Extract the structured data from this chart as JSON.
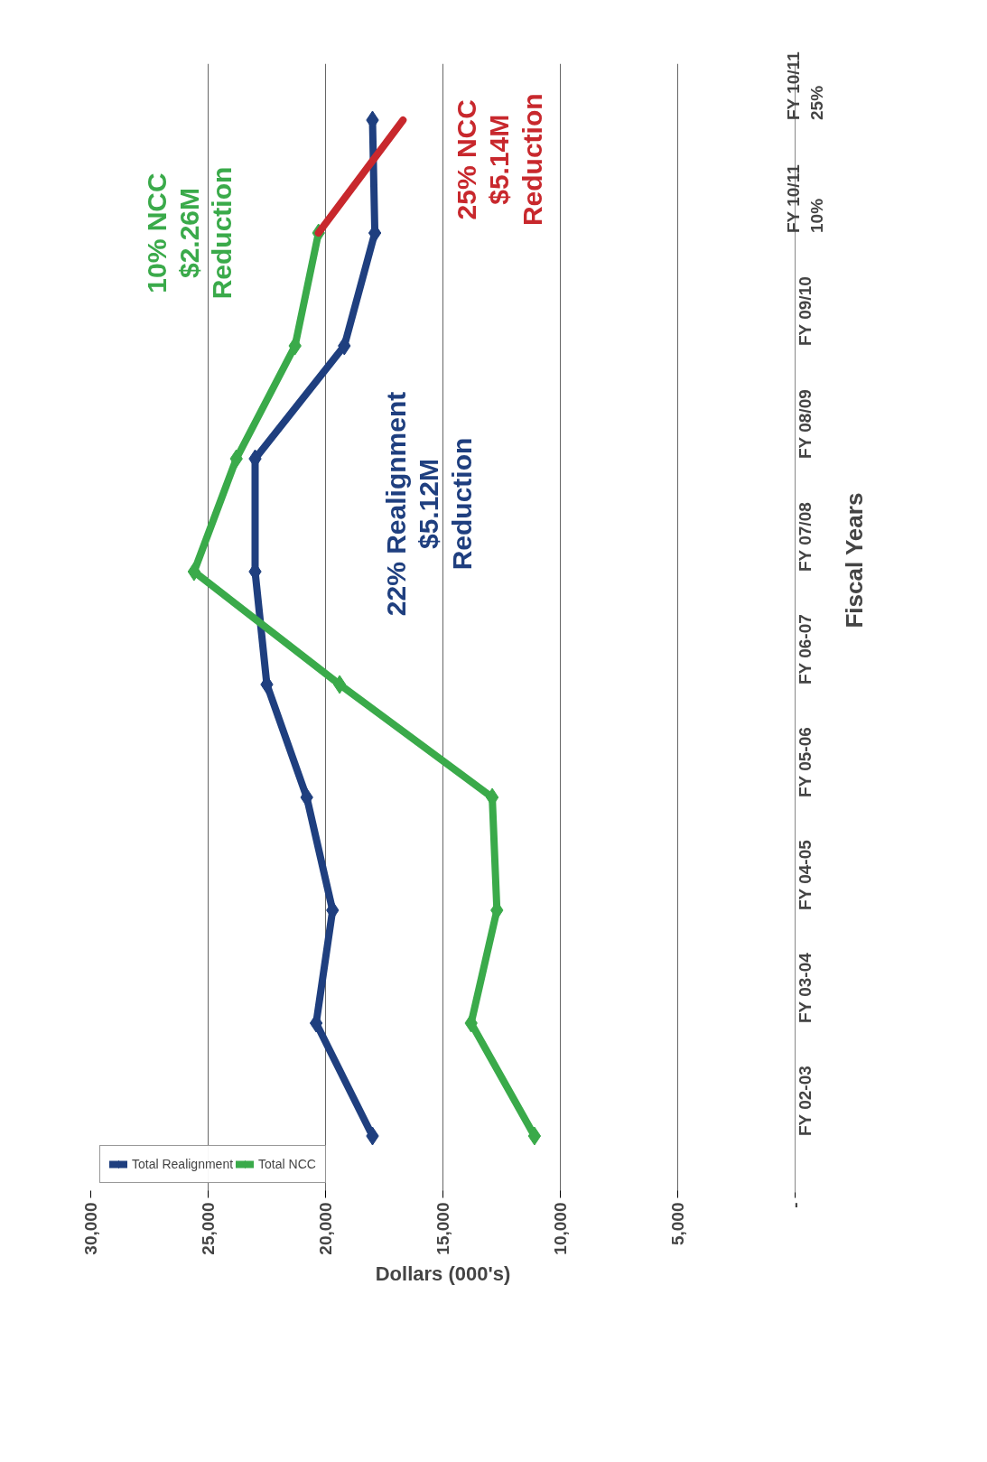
{
  "chart_data": {
    "type": "line",
    "orientation": "horizontal",
    "xlabel": "Dollars (000's)",
    "ylabel": "Fiscal Years",
    "categories": [
      "FY 10/11\n25%",
      "FY 10/11\n10%",
      "FY 09/10",
      "FY 08/09",
      "FY 07/08",
      "FY 06-07",
      "FY 05-06",
      "FY 04-05",
      "FY 03-04",
      "FY 02-03"
    ],
    "series": [
      {
        "name": "Total Realignment",
        "color": "#1f3f7f",
        "values": [
          18000,
          17900,
          19200,
          23000,
          23000,
          22500,
          20800,
          19700,
          20400,
          18000
        ]
      },
      {
        "name": "Total NCC",
        "color": "#3aaa4a",
        "values": [
          null,
          20300,
          21300,
          23800,
          25600,
          19400,
          12900,
          12700,
          13800,
          11100
        ]
      },
      {
        "color": "#c8282d",
        "marker": "none",
        "values": [
          16700,
          20300,
          null,
          null,
          null,
          null,
          null,
          null,
          null,
          null
        ]
      }
    ],
    "xlim": [
      30000,
      0
    ],
    "xticks": [
      {
        "value": 30000,
        "label": "30,000"
      },
      {
        "value": 25000,
        "label": "25,000"
      },
      {
        "value": 20000,
        "label": "20,000"
      },
      {
        "value": 15000,
        "label": "15,000"
      },
      {
        "value": 10000,
        "label": "10,000"
      },
      {
        "value": 5000,
        "label": "5,000"
      },
      {
        "value": 0,
        "label": "-"
      }
    ],
    "grid": "x",
    "legend": "bottom left",
    "marker": "diamond",
    "line_style": "solid",
    "annotations": [
      "22% Realignment\n$5.12M\nReduction",
      "10% NCC\n$2.26M\nReduction",
      "25% NCC\n$5.14M\nReduction"
    ]
  }
}
